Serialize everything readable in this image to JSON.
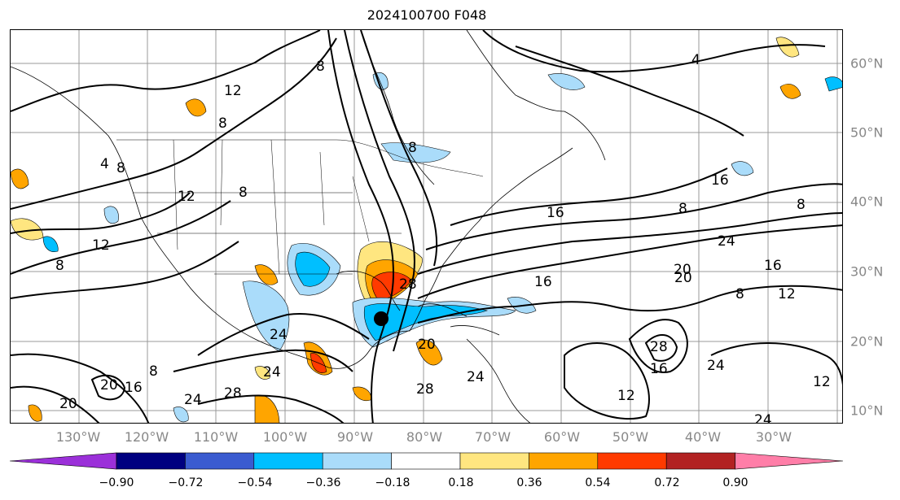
{
  "title": "2024100700 F048",
  "map": {
    "lon_labels": [
      "130°W",
      "120°W",
      "110°W",
      "100°W",
      "90°W",
      "80°W",
      "70°W",
      "60°W",
      "50°W",
      "40°W",
      "30°W"
    ],
    "lat_labels": [
      "60°N",
      "50°N",
      "40°N",
      "30°N",
      "20°N",
      "10°N"
    ],
    "contour_labels": [
      "12",
      "8",
      "8",
      "4",
      "8",
      "12",
      "8",
      "12",
      "8",
      "16",
      "8",
      "8",
      "16",
      "24",
      "16",
      "20",
      "12",
      "8",
      "28",
      "20",
      "16",
      "28",
      "20",
      "24",
      "24",
      "12",
      "16",
      "20",
      "24",
      "28",
      "24",
      "12",
      "24",
      "28",
      "16",
      "20",
      "24",
      "8",
      "8",
      "4"
    ],
    "storm_marker": "storm-center"
  },
  "colorbar": {
    "ticks": [
      "−0.90",
      "−0.72",
      "−0.54",
      "−0.36",
      "−0.18",
      "0.18",
      "0.36",
      "0.54",
      "0.72",
      "0.90"
    ],
    "colors": [
      "#9b30d9",
      "#000080",
      "#3a5bd0",
      "#00bfff",
      "#aadcfa",
      "#ffffff",
      "#ffe680",
      "#ffa500",
      "#ff3a00",
      "#b22222",
      "#ff7ea8"
    ]
  }
}
